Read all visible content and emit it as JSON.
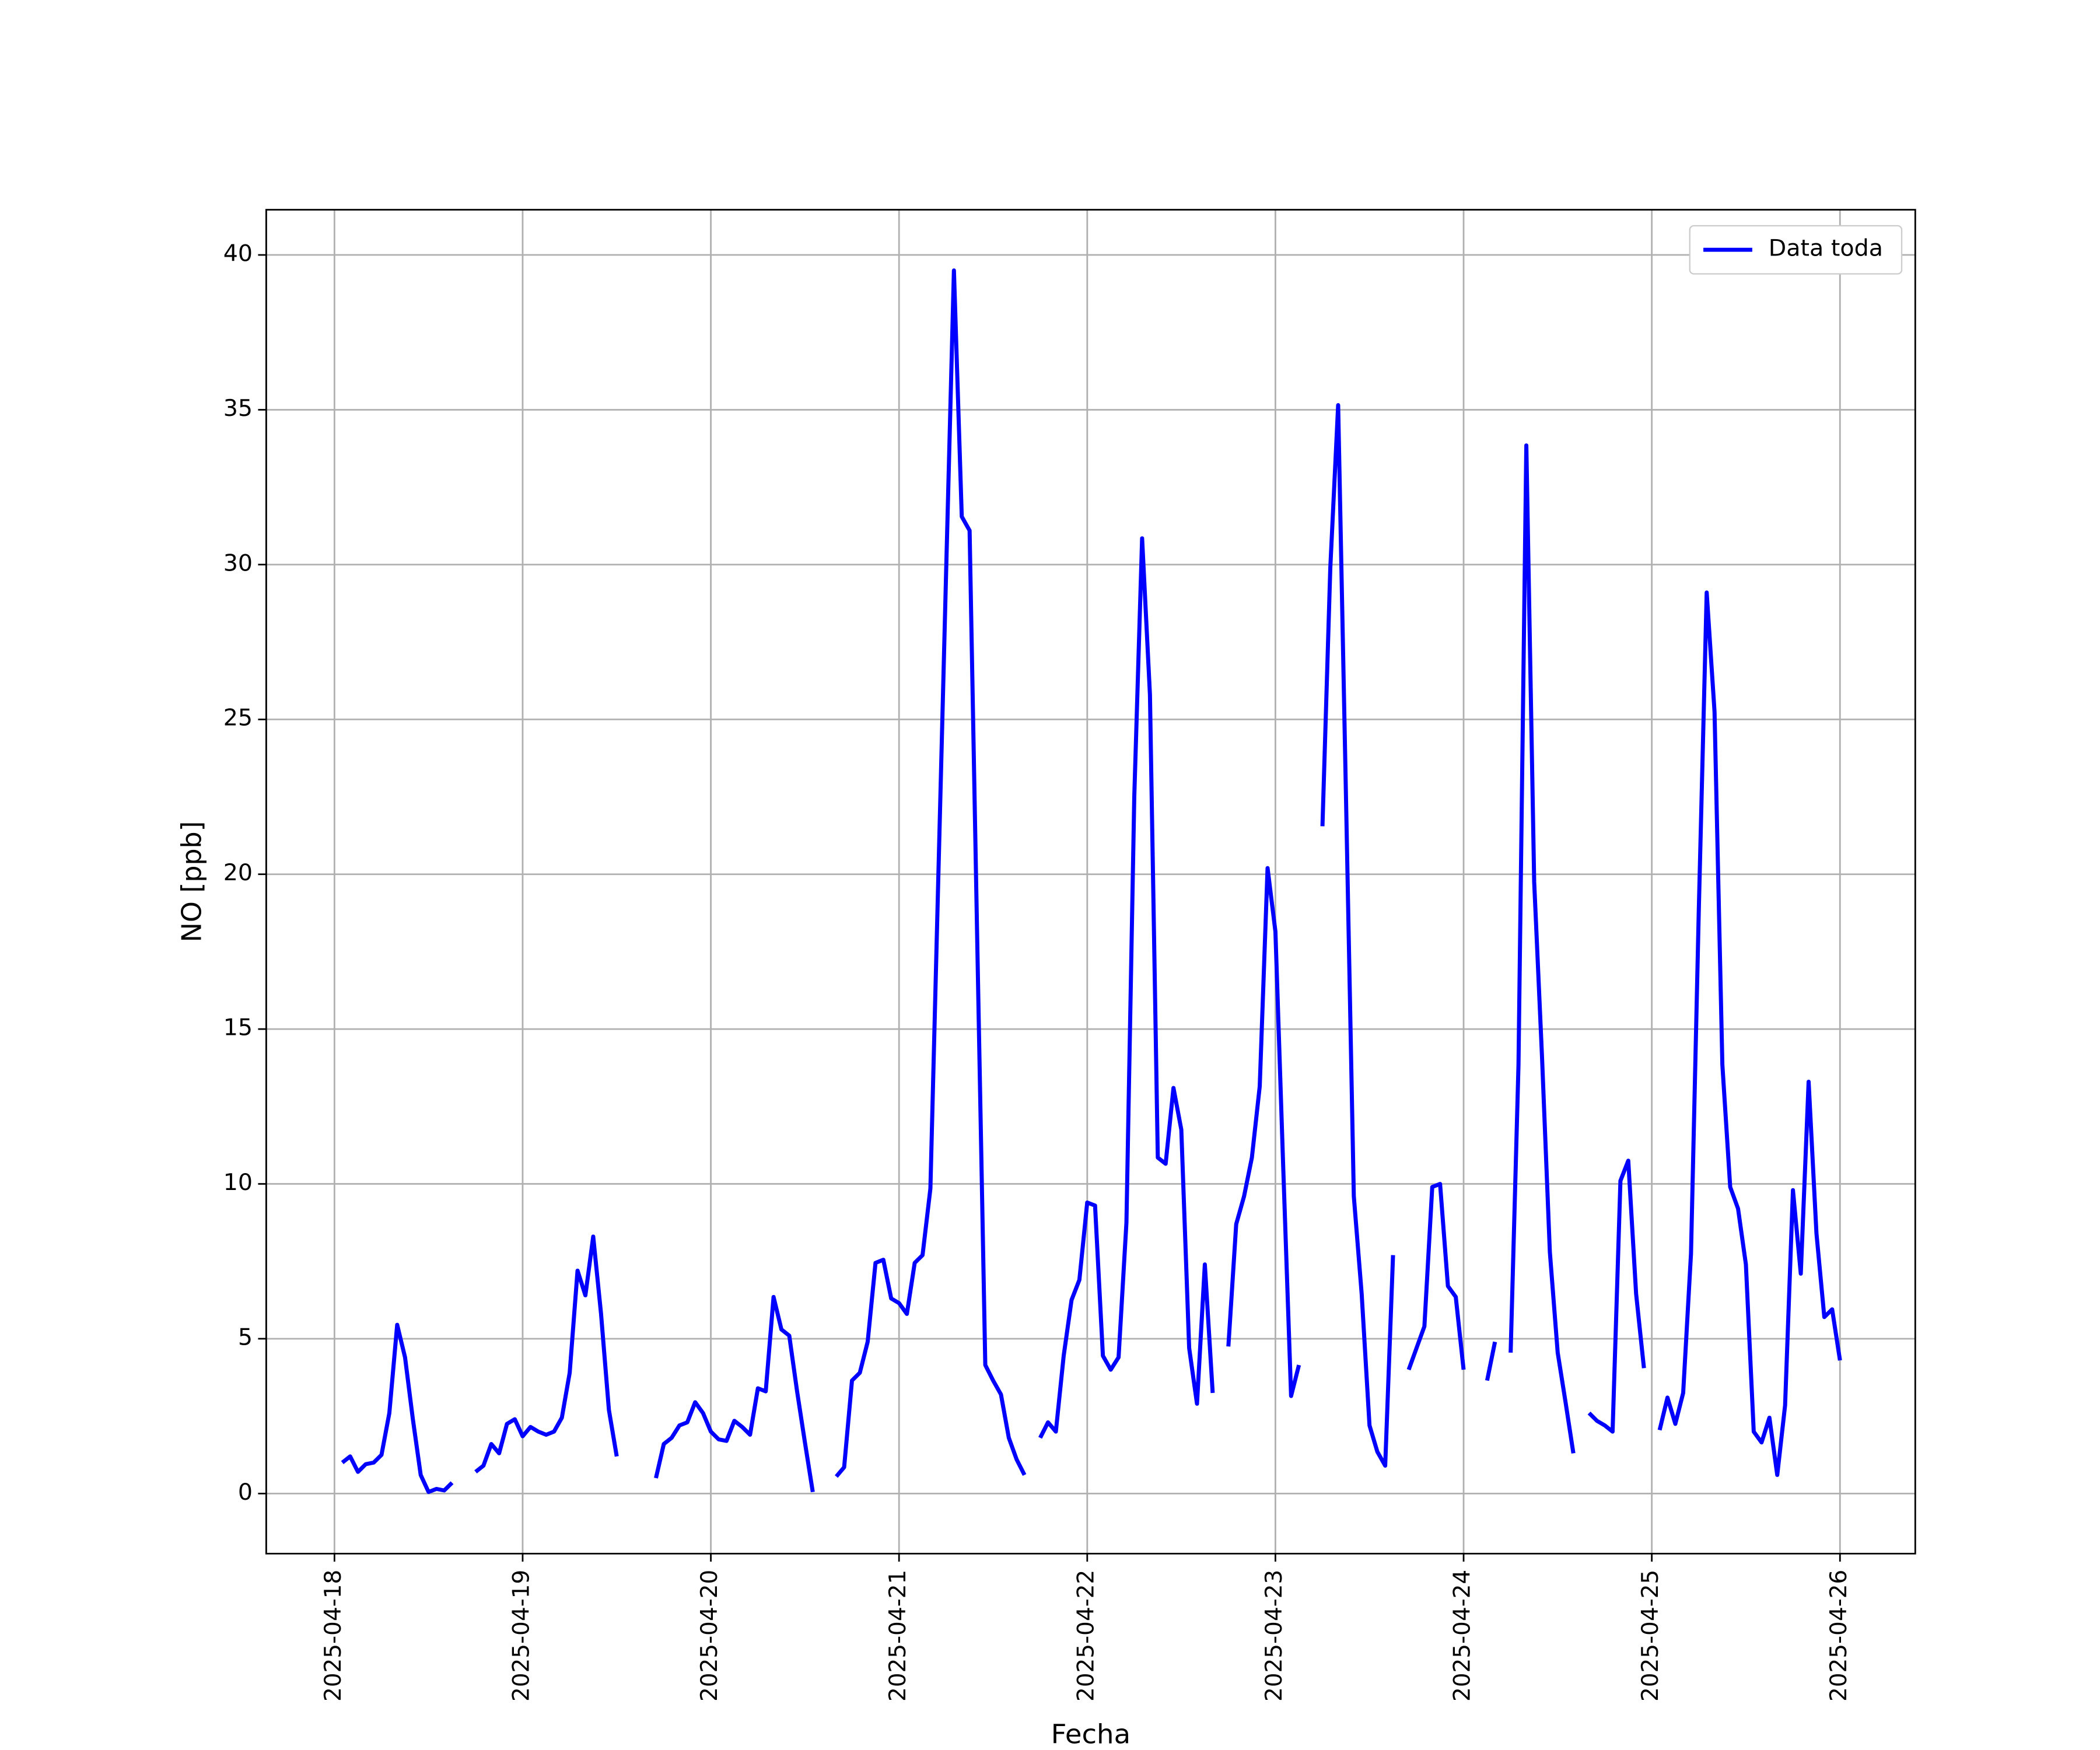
{
  "chart_data": {
    "type": "line",
    "xlabel": "Fecha",
    "ylabel": "NO [ppb]",
    "x": [
      1,
      2,
      3,
      4,
      5,
      6,
      7,
      8,
      9,
      10,
      11,
      12,
      13,
      14,
      15,
      16,
      17,
      18,
      19,
      20,
      21,
      22,
      23,
      24,
      25,
      26,
      27,
      28,
      29,
      30,
      31,
      32,
      33,
      34,
      35,
      36,
      37,
      38,
      39,
      40,
      41,
      42,
      43,
      44,
      45,
      46,
      47,
      48,
      49,
      50,
      51,
      52,
      53,
      54,
      55,
      56,
      57,
      58,
      59,
      60,
      61,
      62,
      63,
      64,
      65,
      66,
      67,
      68,
      69,
      70,
      71,
      72,
      73,
      74,
      75,
      76,
      77,
      78,
      79,
      80,
      81,
      82,
      83,
      84,
      85,
      86,
      87,
      88,
      89,
      90,
      91,
      92,
      93,
      94,
      95,
      96,
      97,
      98,
      99,
      100,
      101,
      102,
      103,
      104,
      105,
      106,
      107,
      108,
      109,
      110,
      111,
      112,
      113,
      114,
      115,
      116,
      117,
      118,
      119,
      120,
      121,
      122,
      123,
      124,
      125,
      126,
      127,
      128,
      129,
      130,
      131,
      132,
      133,
      134,
      135,
      136,
      137,
      138,
      139,
      140,
      141,
      142,
      143,
      144,
      145,
      146,
      147,
      148,
      149,
      150,
      151,
      152,
      153,
      154,
      155,
      156,
      157,
      158,
      159,
      160,
      161,
      162,
      163,
      164,
      165,
      166,
      167,
      168,
      169,
      170,
      171,
      172,
      173,
      174,
      175,
      176,
      177,
      178,
      179,
      180,
      181,
      182,
      183,
      184,
      185,
      186,
      187,
      188,
      189,
      190,
      191,
      192
    ],
    "series": [
      {
        "name": "Data toda",
        "color": "#0000ff",
        "values": [
          1.0,
          1.2,
          0.7,
          0.95,
          1.0,
          1.25,
          2.6,
          5.45,
          4.4,
          2.4,
          0.6,
          0.05,
          0.15,
          0.1,
          0.35,
          null,
          null,
          0.7,
          0.9,
          1.6,
          1.3,
          2.25,
          2.4,
          1.85,
          2.15,
          2.0,
          1.9,
          2.0,
          2.45,
          3.9,
          7.2,
          6.4,
          8.3,
          5.8,
          2.7,
          1.2,
          null,
          null,
          null,
          null,
          0.5,
          1.6,
          1.8,
          2.2,
          2.3,
          2.95,
          2.6,
          2.0,
          1.75,
          1.7,
          2.35,
          2.15,
          1.9,
          3.4,
          3.3,
          6.35,
          5.3,
          5.1,
          3.3,
          1.65,
          0.05,
          null,
          null,
          0.55,
          0.85,
          3.65,
          3.9,
          4.9,
          7.45,
          7.55,
          6.3,
          6.15,
          5.8,
          7.45,
          7.7,
          9.85,
          19.8,
          29.7,
          39.5,
          31.55,
          31.1,
          17.5,
          4.15,
          3.65,
          3.2,
          1.8,
          1.1,
          0.6,
          null,
          1.8,
          2.3,
          2.0,
          4.45,
          6.25,
          6.9,
          9.4,
          9.3,
          4.45,
          4.0,
          4.4,
          8.75,
          22.5,
          30.85,
          25.8,
          10.85,
          10.65,
          13.1,
          11.75,
          4.7,
          2.9,
          7.4,
          3.25,
          null,
          4.75,
          8.7,
          9.6,
          10.85,
          13.15,
          20.2,
          18.15,
          10.5,
          3.15,
          4.15,
          null,
          null,
          21.55,
          29.9,
          35.15,
          22.5,
          9.6,
          6.45,
          2.2,
          1.35,
          0.9,
          7.7,
          null,
          4.0,
          4.7,
          5.4,
          9.9,
          10.0,
          6.7,
          6.35,
          4.0,
          null,
          null,
          3.65,
          4.9,
          null,
          4.55,
          13.85,
          33.85,
          19.75,
          14.1,
          7.8,
          4.55,
          2.95,
          1.3,
          null,
          2.6,
          2.35,
          2.2,
          2.0,
          10.1,
          10.75,
          6.45,
          4.05,
          null,
          2.05,
          3.1,
          2.25,
          3.25,
          7.75,
          18.9,
          29.1,
          25.25,
          13.85,
          9.9,
          9.2,
          7.4,
          2.0,
          1.65,
          2.45,
          0.6,
          2.85,
          9.8,
          7.1,
          13.3,
          8.4,
          5.7,
          5.95,
          4.3
        ]
      }
    ],
    "xlim": [
      -8.7,
      201.6
    ],
    "xticks": [
      {
        "value": 0,
        "label": "2025-04-18"
      },
      {
        "value": 24,
        "label": "2025-04-19"
      },
      {
        "value": 48,
        "label": "2025-04-20"
      },
      {
        "value": 72,
        "label": "2025-04-21"
      },
      {
        "value": 96,
        "label": "2025-04-22"
      },
      {
        "value": 120,
        "label": "2025-04-23"
      },
      {
        "value": 144,
        "label": "2025-04-24"
      },
      {
        "value": 168,
        "label": "2025-04-25"
      },
      {
        "value": 192,
        "label": "2025-04-26"
      }
    ],
    "ylim": [
      -1.94,
      41.46
    ],
    "yticks": [
      0,
      5,
      10,
      15,
      20,
      25,
      30,
      35,
      40
    ],
    "grid": true,
    "legend": "upper right"
  }
}
